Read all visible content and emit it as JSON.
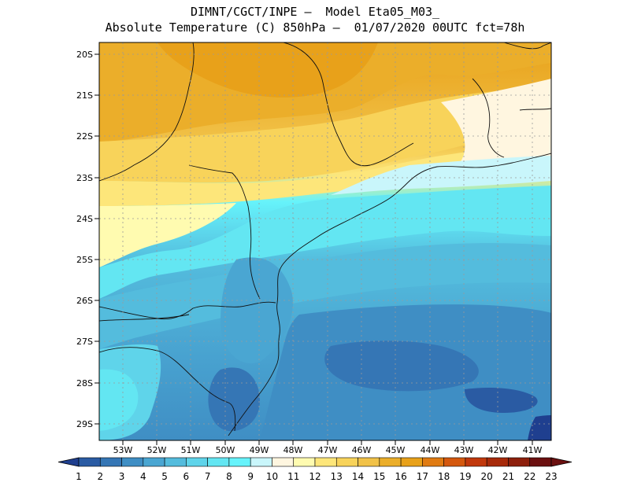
{
  "header": {
    "line1": "DIMNT/CGCT/INPE –  Model Eta05_M03_",
    "line2": "Absolute Temperature (C) 850hPa –  01/07/2020 00UTC fct=78h"
  },
  "map": {
    "lat_labels": [
      "20S",
      "21S",
      "22S",
      "23S",
      "24S",
      "25S",
      "26S",
      "27S",
      "28S",
      "29S"
    ],
    "lon_labels": [
      "53W",
      "52W",
      "51W",
      "50W",
      "49W",
      "48W",
      "47W",
      "46W",
      "45W",
      "44W",
      "43W",
      "42W",
      "41W"
    ]
  },
  "colorbar": {
    "labels": [
      "1",
      "2",
      "3",
      "4",
      "5",
      "6",
      "7",
      "8",
      "9",
      "10",
      "11",
      "12",
      "13",
      "14",
      "15",
      "16",
      "17",
      "18",
      "19",
      "20",
      "21",
      "22",
      "23"
    ],
    "colors": [
      "#1f3f8f",
      "#2a5ba3",
      "#3576b5",
      "#3f8ec4",
      "#4aa6d2",
      "#54bcdd",
      "#5fd4ea",
      "#63e6f2",
      "#66f3fb",
      "#c9f6fb",
      "#fff6e0",
      "#fffbb0",
      "#fde67a",
      "#f8d35a",
      "#f1c248",
      "#ebae2a",
      "#e8a11a",
      "#e07b12",
      "#d4580e",
      "#c1380c",
      "#a72a0a",
      "#8d1f0c",
      "#6b1010"
    ]
  }
}
